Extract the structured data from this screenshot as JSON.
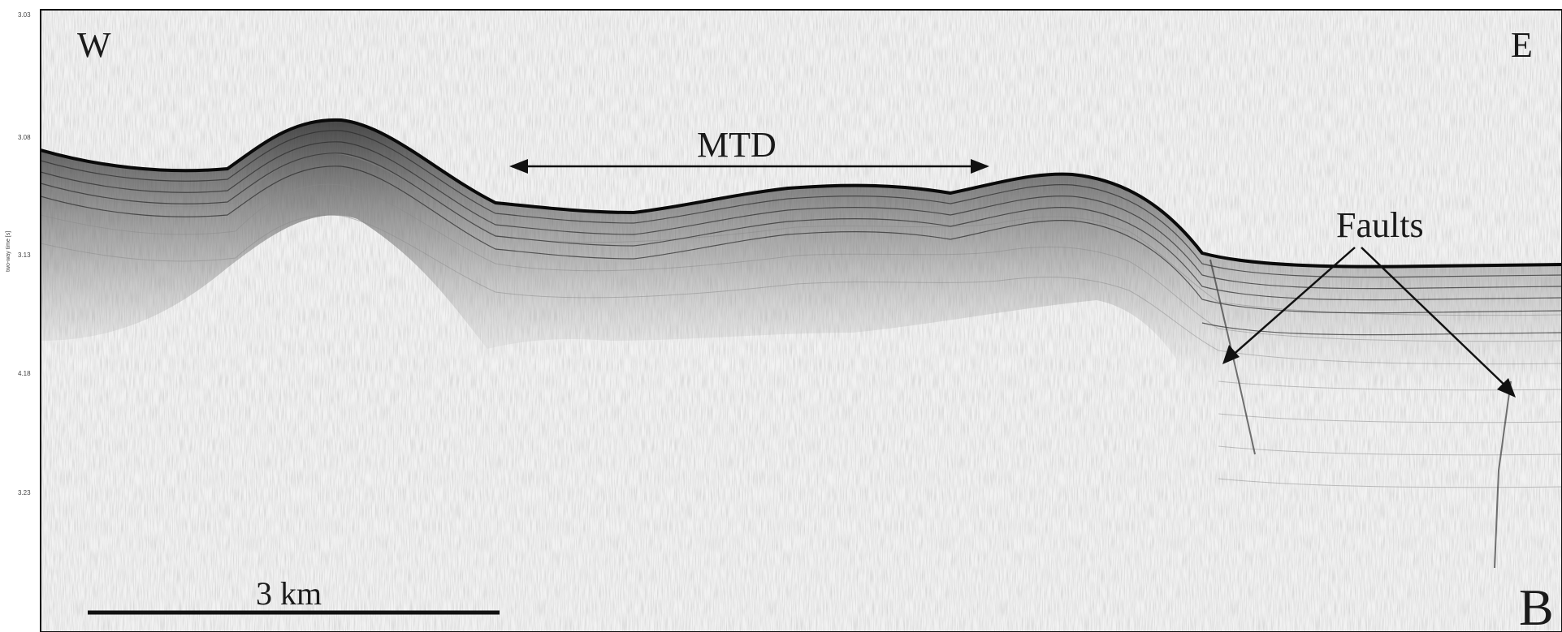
{
  "axis": {
    "title": "two-way time [s]",
    "ticks": [
      "3.03",
      "3.08",
      "3.13",
      "4.18",
      "3.23"
    ]
  },
  "labels": {
    "west": "W",
    "east": "E",
    "mtd": "MTD",
    "faults": "Faults",
    "panel": "B"
  },
  "scale_bar": {
    "label": "3 km"
  },
  "colors": {
    "background": "#f2f2f2",
    "reflector": "#1a1a1a",
    "frame": "#111111"
  }
}
